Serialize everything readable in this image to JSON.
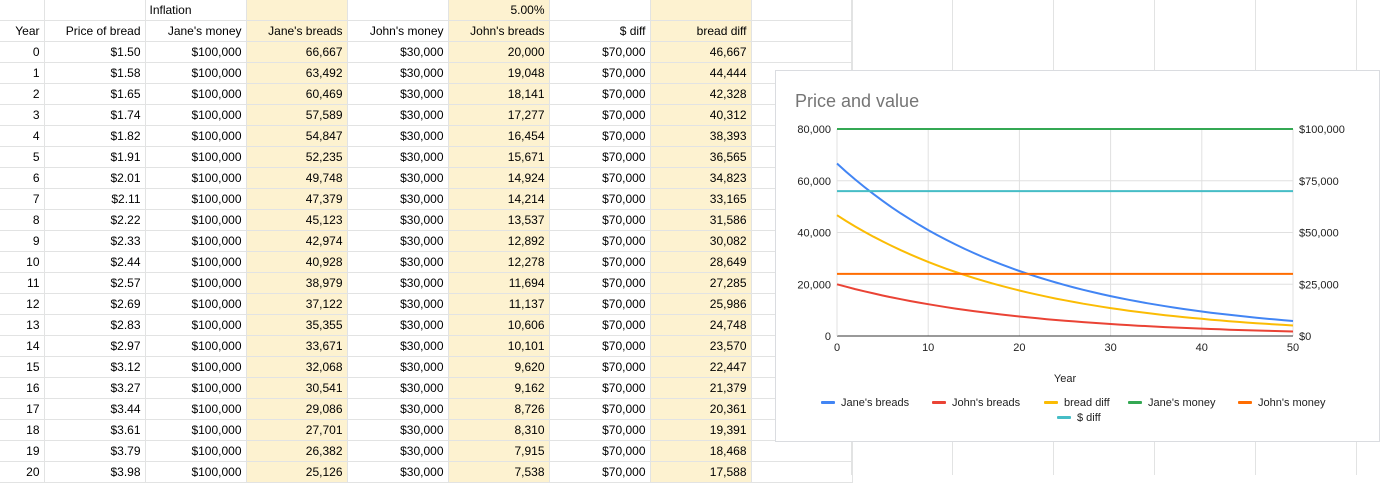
{
  "sheet": {
    "top_row": [
      "",
      "",
      "Inflation",
      "",
      "",
      "5.00%",
      "",
      "",
      ""
    ],
    "header_row": [
      "Year",
      "Price of bread",
      "Jane's money",
      "Jane's breads",
      "John's money",
      "John's breads",
      "$ diff",
      "bread diff"
    ],
    "rows": [
      [
        "0",
        "$1.50",
        "$100,000",
        "66,667",
        "$30,000",
        "20,000",
        "$70,000",
        "46,667"
      ],
      [
        "1",
        "$1.58",
        "$100,000",
        "63,492",
        "$30,000",
        "19,048",
        "$70,000",
        "44,444"
      ],
      [
        "2",
        "$1.65",
        "$100,000",
        "60,469",
        "$30,000",
        "18,141",
        "$70,000",
        "42,328"
      ],
      [
        "3",
        "$1.74",
        "$100,000",
        "57,589",
        "$30,000",
        "17,277",
        "$70,000",
        "40,312"
      ],
      [
        "4",
        "$1.82",
        "$100,000",
        "54,847",
        "$30,000",
        "16,454",
        "$70,000",
        "38,393"
      ],
      [
        "5",
        "$1.91",
        "$100,000",
        "52,235",
        "$30,000",
        "15,671",
        "$70,000",
        "36,565"
      ],
      [
        "6",
        "$2.01",
        "$100,000",
        "49,748",
        "$30,000",
        "14,924",
        "$70,000",
        "34,823"
      ],
      [
        "7",
        "$2.11",
        "$100,000",
        "47,379",
        "$30,000",
        "14,214",
        "$70,000",
        "33,165"
      ],
      [
        "8",
        "$2.22",
        "$100,000",
        "45,123",
        "$30,000",
        "13,537",
        "$70,000",
        "31,586"
      ],
      [
        "9",
        "$2.33",
        "$100,000",
        "42,974",
        "$30,000",
        "12,892",
        "$70,000",
        "30,082"
      ],
      [
        "10",
        "$2.44",
        "$100,000",
        "40,928",
        "$30,000",
        "12,278",
        "$70,000",
        "28,649"
      ],
      [
        "11",
        "$2.57",
        "$100,000",
        "38,979",
        "$30,000",
        "11,694",
        "$70,000",
        "27,285"
      ],
      [
        "12",
        "$2.69",
        "$100,000",
        "37,122",
        "$30,000",
        "11,137",
        "$70,000",
        "25,986"
      ],
      [
        "13",
        "$2.83",
        "$100,000",
        "35,355",
        "$30,000",
        "10,606",
        "$70,000",
        "24,748"
      ],
      [
        "14",
        "$2.97",
        "$100,000",
        "33,671",
        "$30,000",
        "10,101",
        "$70,000",
        "23,570"
      ],
      [
        "15",
        "$3.12",
        "$100,000",
        "32,068",
        "$30,000",
        "9,620",
        "$70,000",
        "22,447"
      ],
      [
        "16",
        "$3.27",
        "$100,000",
        "30,541",
        "$30,000",
        "9,162",
        "$70,000",
        "21,379"
      ],
      [
        "17",
        "$3.44",
        "$100,000",
        "29,086",
        "$30,000",
        "8,726",
        "$70,000",
        "20,361"
      ],
      [
        "18",
        "$3.61",
        "$100,000",
        "27,701",
        "$30,000",
        "8,310",
        "$70,000",
        "19,391"
      ],
      [
        "19",
        "$3.79",
        "$100,000",
        "26,382",
        "$30,000",
        "7,915",
        "$70,000",
        "18,468"
      ],
      [
        "20",
        "$3.98",
        "$100,000",
        "25,126",
        "$30,000",
        "7,538",
        "$70,000",
        "17,588"
      ]
    ],
    "header_fill": "#fdf2d0"
  },
  "chart_data": {
    "type": "line",
    "title": "Price and value",
    "xlabel": "Year",
    "x_ticks": [
      "0",
      "10",
      "20",
      "30",
      "40",
      "50"
    ],
    "xlim": [
      0,
      50
    ],
    "y_left_ticks": [
      "0",
      "20,000",
      "40,000",
      "60,000",
      "80,000"
    ],
    "ylim_left": [
      0,
      80000
    ],
    "y_right_ticks": [
      "$0",
      "$25,000",
      "$50,000",
      "$75,000",
      "$100,000"
    ],
    "ylim_right": [
      0,
      100000
    ],
    "grid": true,
    "legend_position": "bottom",
    "series": [
      {
        "name": "Jane's breads",
        "axis": "left",
        "color": "#4285f4",
        "start": 66667,
        "rate": 1.05
      },
      {
        "name": "John's breads",
        "axis": "left",
        "color": "#ea4335",
        "start": 20000,
        "rate": 1.05
      },
      {
        "name": "bread diff",
        "axis": "left",
        "color": "#fbbc04",
        "start": 46667,
        "rate": 1.05
      },
      {
        "name": "Jane's money",
        "axis": "right",
        "color": "#34a853",
        "start": 100000,
        "rate": 1
      },
      {
        "name": "John's money",
        "axis": "right",
        "color": "#ff6d01",
        "start": 30000,
        "rate": 1
      },
      {
        "name": "$ diff",
        "axis": "right",
        "color": "#46bdc6",
        "start": 70000,
        "rate": 1
      }
    ]
  }
}
